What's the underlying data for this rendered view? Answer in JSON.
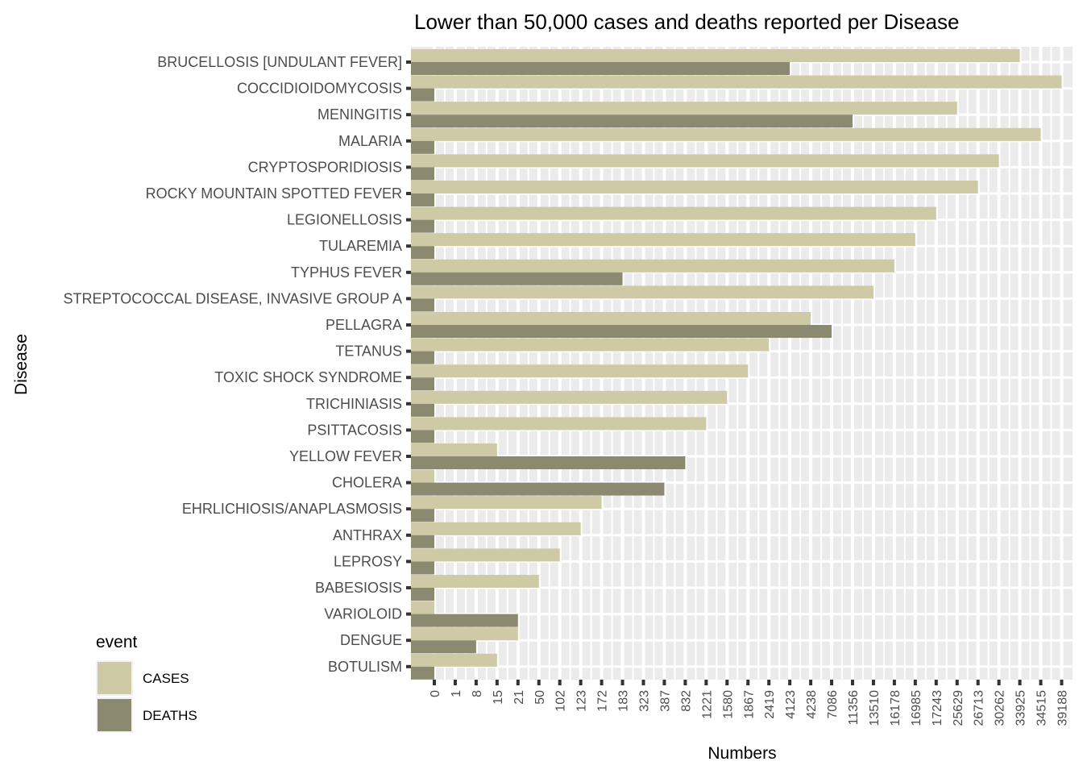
{
  "chart_data": {
    "type": "bar",
    "orientation": "horizontal",
    "title": "Lower than 50,000 cases and deaths reported per Disease",
    "xlabel": "Numbers",
    "ylabel": "Disease",
    "x_scale": "categorical (each tick is a distinct observed value)",
    "x_ticks": [
      "0",
      "1",
      "8",
      "15",
      "21",
      "50",
      "102",
      "123",
      "172",
      "183",
      "323",
      "387",
      "832",
      "1221",
      "1580",
      "1867",
      "2419",
      "4123",
      "4238",
      "7086",
      "11356",
      "13510",
      "16178",
      "16985",
      "17243",
      "25629",
      "26713",
      "30262",
      "33925",
      "34515",
      "39188"
    ],
    "categories": [
      "BRUCELLOSIS [UNDULANT FEVER]",
      "COCCIDIOIDOMYCOSIS",
      "MENINGITIS",
      "MALARIA",
      "CRYPTOSPORIDIOSIS",
      "ROCKY MOUNTAIN SPOTTED FEVER",
      "LEGIONELLOSIS",
      "TULAREMIA",
      "TYPHUS FEVER",
      "STREPTOCOCCAL DISEASE, INVASIVE GROUP A",
      "PELLAGRA",
      "TETANUS",
      "TOXIC SHOCK SYNDROME",
      "TRICHINIASIS",
      "PSITTACOSIS",
      "YELLOW FEVER",
      "CHOLERA",
      "EHRLICHIOSIS/ANAPLASMOSIS",
      "ANTHRAX",
      "LEPROSY",
      "BABESIOSIS",
      "VARIOLOID",
      "DENGUE",
      "BOTULISM"
    ],
    "series": [
      {
        "name": "CASES",
        "color": "#cdcaa5",
        "values": [
          "33925",
          "39188",
          "25629",
          "34515",
          "30262",
          "26713",
          "17243",
          "16985",
          "16178",
          "13510",
          "4238",
          "2419",
          "1867",
          "1580",
          "1221",
          "15",
          "0",
          "172",
          "123",
          "102",
          "50",
          "0",
          "21",
          "15"
        ]
      },
      {
        "name": "DEATHS",
        "color": "#8b8a70",
        "values": [
          "4123",
          "0",
          "11356",
          "0",
          "0",
          "0",
          "0",
          "0",
          "183",
          "0",
          "7086",
          "0",
          "0",
          "0",
          "0",
          "832",
          "387",
          "0",
          "0",
          "0",
          "0",
          "21",
          "8",
          "0"
        ]
      }
    ],
    "legend": {
      "title": "event",
      "position": "bottom-left"
    },
    "grid": true,
    "panel_background": "#ebebeb"
  }
}
